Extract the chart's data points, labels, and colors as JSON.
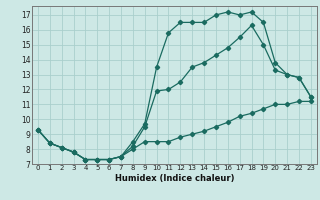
{
  "xlabel": "Humidex (Indice chaleur)",
  "bg_color": "#cde8e5",
  "grid_color": "#aacfcc",
  "line_color": "#1a6b60",
  "xlim": [
    -0.5,
    23.5
  ],
  "ylim": [
    7,
    17.6
  ],
  "xticks": [
    0,
    1,
    2,
    3,
    4,
    5,
    6,
    7,
    8,
    9,
    10,
    11,
    12,
    13,
    14,
    15,
    16,
    17,
    18,
    19,
    20,
    21,
    22,
    23
  ],
  "yticks": [
    7,
    8,
    9,
    10,
    11,
    12,
    13,
    14,
    15,
    16,
    17
  ],
  "curve_bottom_x": [
    0,
    1,
    2,
    3,
    4,
    5,
    6,
    7,
    8,
    9,
    10,
    11,
    12,
    13,
    14,
    15,
    16,
    17,
    18,
    19,
    20,
    21,
    22,
    23
  ],
  "curve_bottom_y": [
    9.3,
    8.4,
    8.1,
    7.8,
    7.3,
    7.3,
    7.3,
    7.5,
    8.0,
    8.5,
    8.5,
    8.5,
    8.8,
    9.0,
    9.2,
    9.5,
    9.8,
    10.2,
    10.4,
    10.7,
    11.0,
    11.0,
    11.2,
    11.2
  ],
  "curve_mid_x": [
    0,
    1,
    2,
    3,
    4,
    5,
    6,
    7,
    8,
    9,
    10,
    11,
    12,
    13,
    14,
    15,
    16,
    17,
    18,
    19,
    20,
    21,
    22,
    23
  ],
  "curve_mid_y": [
    9.3,
    8.4,
    8.1,
    7.8,
    7.3,
    7.3,
    7.3,
    7.5,
    8.2,
    9.5,
    11.9,
    12.0,
    12.5,
    13.5,
    13.8,
    14.3,
    14.8,
    15.5,
    16.3,
    15.0,
    13.3,
    13.0,
    12.8,
    11.5
  ],
  "curve_top_x": [
    0,
    1,
    2,
    3,
    4,
    5,
    6,
    7,
    8,
    9,
    10,
    11,
    12,
    13,
    14,
    15,
    16,
    17,
    18,
    19,
    20,
    21,
    22,
    23
  ],
  "curve_top_y": [
    9.3,
    8.4,
    8.1,
    7.8,
    7.3,
    7.3,
    7.3,
    7.5,
    8.5,
    9.7,
    13.5,
    15.8,
    16.5,
    16.5,
    16.5,
    17.0,
    17.2,
    17.0,
    17.2,
    16.5,
    13.8,
    13.0,
    12.8,
    11.5
  ]
}
